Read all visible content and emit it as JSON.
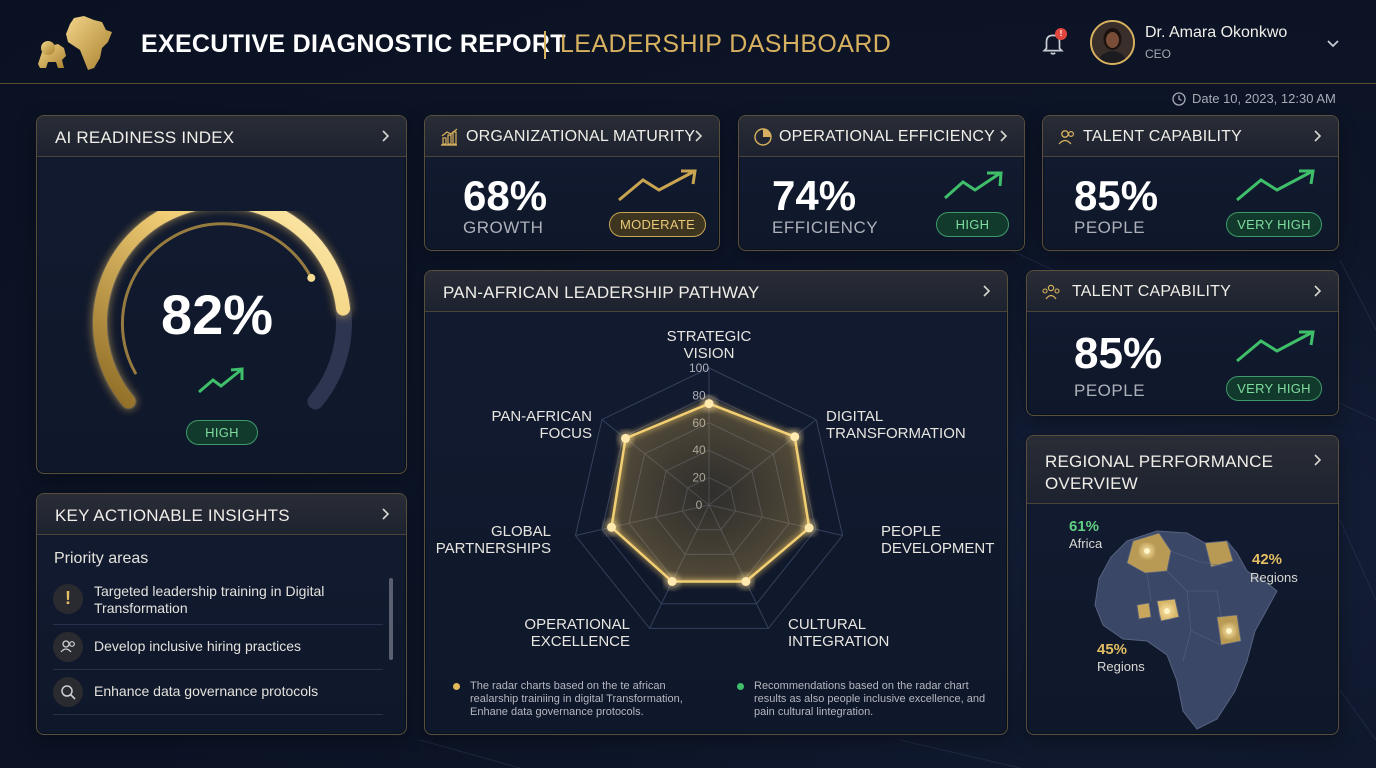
{
  "header": {
    "title": "EXECUTIVE DIAGNOSTIC REPORT",
    "subtitle": "LEADERSHIP DASHBOARD",
    "notification_count": "!",
    "user": {
      "name": "Dr. Amara Okonkwo",
      "role": "CEO"
    }
  },
  "timestamp": "Date 10, 2023, 12:30 AM",
  "ai_readiness": {
    "title": "AI READINESS INDEX",
    "value": "82%",
    "level": 0.82,
    "status": "HIGH"
  },
  "metrics": [
    {
      "title": "ORGANIZATIONAL MATURITY",
      "value": "68%",
      "label": "GROWTH",
      "status": "MODERATE",
      "icon": "bar-chart-icon"
    },
    {
      "title": "OPERATIONAL EFFICIENCY",
      "value": "74%",
      "label": "EFFICIENCY",
      "status": "HIGH",
      "icon": "pie-chart-icon"
    },
    {
      "title": "TALENT CAPABILITY",
      "value": "85%",
      "label": "PEOPLE",
      "status": "VERY HIGH",
      "icon": "people-icon"
    },
    {
      "title": "TALENT CAPABILITY",
      "value": "85%",
      "label": "PEOPLE",
      "status": "VERY HIGH",
      "icon": "team-icon"
    }
  ],
  "insights": {
    "title": "KEY ACTIONABLE INSIGHTS",
    "subtitle": "Priority areas",
    "items": [
      {
        "text": "Targeted leadership training in Digital Transformation",
        "icon": "exclamation-icon"
      },
      {
        "text": "Develop inclusive hiring practices",
        "icon": "people-icon"
      },
      {
        "text": "Enhance data governance protocols",
        "icon": "search-icon"
      }
    ]
  },
  "radar": {
    "title": "PAN-AFRICAN LEADERSHIP PATHWAY",
    "labels": [
      "STRATEGIC\nVISION",
      "DIGITAL\nTRANSFORMATION",
      "PEOPLE\nDEVELOPMENT",
      "CULTURAL\nINTEGRATION",
      "OPERATIONAL\nEXCELLENCE",
      "GLOBAL\nPARTNERSHIPS",
      "PAN-AFRICAN\nFOCUS"
    ],
    "ticks": [
      "0",
      "20",
      "40",
      "60",
      "80",
      "100"
    ],
    "note_left": "The radar charts based on the te african realarship trainiing in digital Transformation, Enhane data governance protocols.",
    "note_right": "Recommendations based on the radar chart results as also people inclusive excellence, and pain cultural lintegration."
  },
  "chart_data": {
    "type": "radar",
    "categories": [
      "STRATEGIC VISION",
      "DIGITAL TRANSFORMATION",
      "PEOPLE DEVELOPMENT",
      "CULTURAL INTEGRATION",
      "OPERATIONAL EXCELLENCE",
      "GLOBAL PARTNERSHIPS",
      "PAN-AFRICAN FOCUS"
    ],
    "values": [
      74,
      80,
      75,
      62,
      62,
      73,
      78
    ],
    "range": [
      0,
      100
    ],
    "grid": true
  },
  "regional": {
    "title": "REGIONAL PERFORMANCE OVERVIEW",
    "regions": [
      {
        "pct": "61%",
        "label": "Africa"
      },
      {
        "pct": "42%",
        "label": "Regions"
      },
      {
        "pct": "45%",
        "label": "Regions"
      }
    ]
  },
  "colors": {
    "gold": "#d7b15f",
    "green": "#3fbf6a",
    "navy": "#0d1528"
  }
}
